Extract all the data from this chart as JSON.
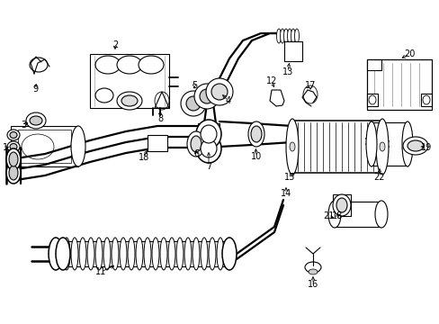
{
  "bg_color": "#ffffff",
  "line_color": "#000000",
  "fig_width": 4.89,
  "fig_height": 3.6,
  "dpi": 100,
  "fs": 7.0
}
